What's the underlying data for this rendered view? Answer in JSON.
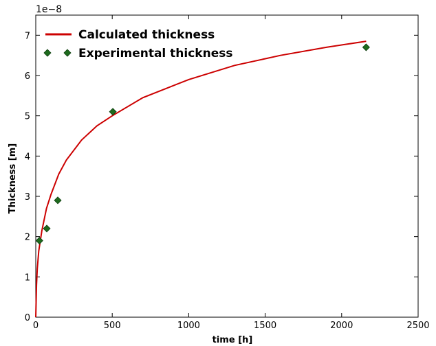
{
  "chart_data": {
    "type": "line",
    "xlabel": "time [h]",
    "ylabel": "Thickness [m]",
    "y_exponent_label": "1e−8",
    "xlim": [
      0,
      2500
    ],
    "ylim": [
      0,
      7.5
    ],
    "x_ticks": [
      0,
      500,
      1000,
      1500,
      2000,
      2500
    ],
    "y_ticks": [
      0,
      1,
      2,
      3,
      4,
      5,
      6,
      7
    ],
    "x_tick_labels": [
      "0",
      "500",
      "1000",
      "1500",
      "2000",
      "2500"
    ],
    "y_tick_labels": [
      "0",
      "1",
      "2",
      "3",
      "4",
      "5",
      "6",
      "7"
    ],
    "grid": false,
    "legend": "top-left",
    "series": [
      {
        "name": "Calculated thickness",
        "kind": "line",
        "color": "#cc0000",
        "x": [
          0,
          5,
          10,
          20,
          40,
          70,
          100,
          150,
          200,
          300,
          400,
          500,
          700,
          1000,
          1300,
          1600,
          1900,
          2160
        ],
        "y": [
          0,
          0.8,
          1.2,
          1.65,
          2.15,
          2.7,
          3.05,
          3.55,
          3.9,
          4.4,
          4.75,
          5.0,
          5.45,
          5.9,
          6.25,
          6.5,
          6.7,
          6.85
        ]
      },
      {
        "name": "Experimental thickness",
        "kind": "scatter",
        "marker": "diamond",
        "color": "#1e6b1e",
        "x": [
          24,
          72,
          144,
          504,
          2160
        ],
        "y": [
          1.9,
          2.2,
          2.9,
          5.1,
          6.7
        ]
      }
    ]
  }
}
